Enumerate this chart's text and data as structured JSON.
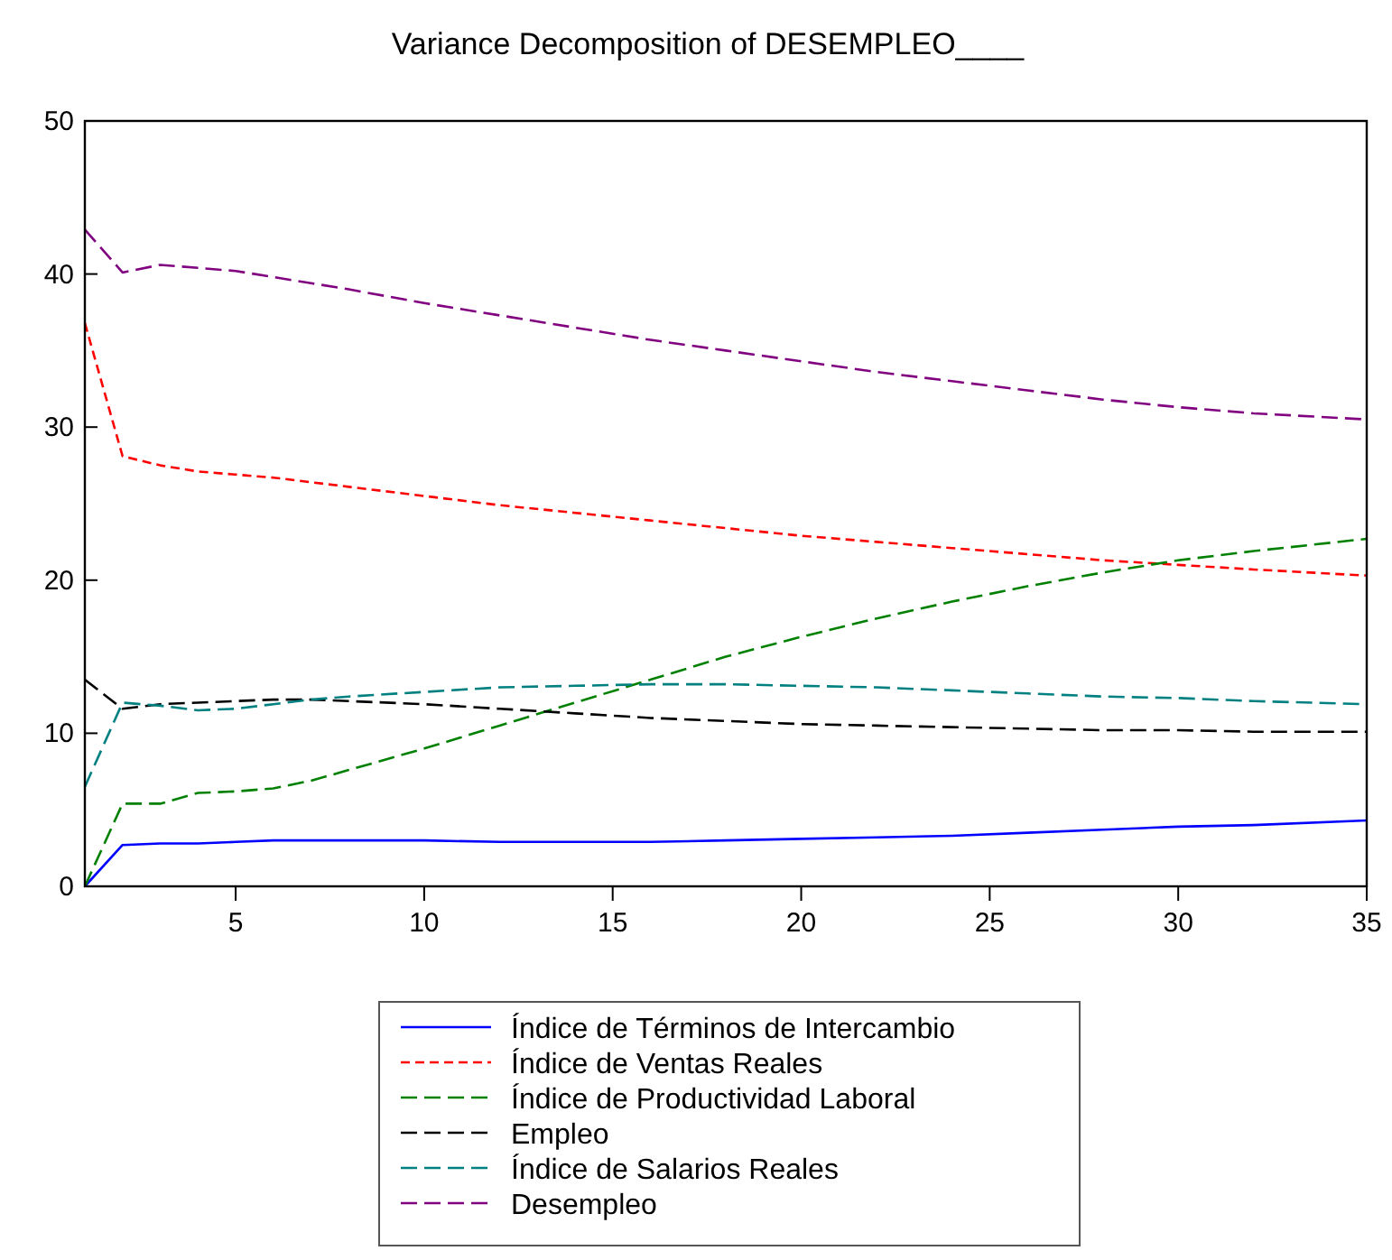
{
  "chart_data": {
    "type": "line",
    "title": "Variance Decomposition of DESEMPLEO____",
    "x": [
      1,
      2,
      3,
      4,
      5,
      6,
      7,
      8,
      10,
      12,
      14,
      16,
      18,
      20,
      22,
      24,
      26,
      28,
      30,
      32,
      35
    ],
    "xlim": [
      1,
      35
    ],
    "xticks": [
      5,
      10,
      15,
      20,
      25,
      30,
      35
    ],
    "ylim": [
      0,
      50
    ],
    "yticks": [
      0,
      10,
      20,
      30,
      40,
      50
    ],
    "grid": false,
    "legend": "bottom",
    "marker": "none",
    "series": [
      {
        "name": "Índice de Términos de Intercambio",
        "color": "#0000ff",
        "line_style": "solid",
        "values": [
          0,
          2.7,
          2.8,
          2.8,
          2.9,
          3.0,
          3.0,
          3.0,
          3.0,
          2.9,
          2.9,
          2.9,
          3.0,
          3.1,
          3.2,
          3.3,
          3.5,
          3.7,
          3.9,
          4.0,
          4.3
        ]
      },
      {
        "name": "Índice de Ventas Reales",
        "color": "#ff0000",
        "line_style": "dotted",
        "values": [
          36.8,
          28.1,
          27.5,
          27.1,
          26.9,
          26.7,
          26.4,
          26.1,
          25.5,
          24.9,
          24.4,
          23.9,
          23.4,
          22.9,
          22.5,
          22.1,
          21.7,
          21.3,
          21.0,
          20.7,
          20.3
        ]
      },
      {
        "name": "Índice de Productividad Laboral",
        "color": "#008000",
        "line_style": "dashed",
        "values": [
          0,
          5.4,
          5.4,
          6.1,
          6.2,
          6.4,
          6.9,
          7.6,
          9.0,
          10.5,
          12.0,
          13.5,
          15.0,
          16.3,
          17.5,
          18.6,
          19.6,
          20.5,
          21.3,
          21.9,
          22.7
        ]
      },
      {
        "name": "Empleo",
        "color": "#000000",
        "line_style": "dashed",
        "values": [
          13.5,
          11.6,
          11.9,
          12.0,
          12.1,
          12.2,
          12.2,
          12.1,
          11.9,
          11.6,
          11.3,
          11.0,
          10.8,
          10.6,
          10.5,
          10.4,
          10.3,
          10.2,
          10.2,
          10.1,
          10.1
        ]
      },
      {
        "name": "Índice de Salarios Reales",
        "color": "#008080",
        "line_style": "dashed",
        "values": [
          6.5,
          12.0,
          11.8,
          11.5,
          11.6,
          11.9,
          12.2,
          12.4,
          12.7,
          13.0,
          13.1,
          13.2,
          13.2,
          13.1,
          13.0,
          12.8,
          12.6,
          12.4,
          12.3,
          12.1,
          11.9
        ]
      },
      {
        "name": "Desempleo",
        "color": "#800080",
        "line_style": "dashed",
        "values": [
          42.9,
          40.1,
          40.6,
          40.4,
          40.2,
          39.8,
          39.4,
          39.0,
          38.1,
          37.3,
          36.5,
          35.7,
          35.0,
          34.3,
          33.6,
          33.0,
          32.4,
          31.8,
          31.3,
          30.9,
          30.5
        ]
      }
    ]
  }
}
